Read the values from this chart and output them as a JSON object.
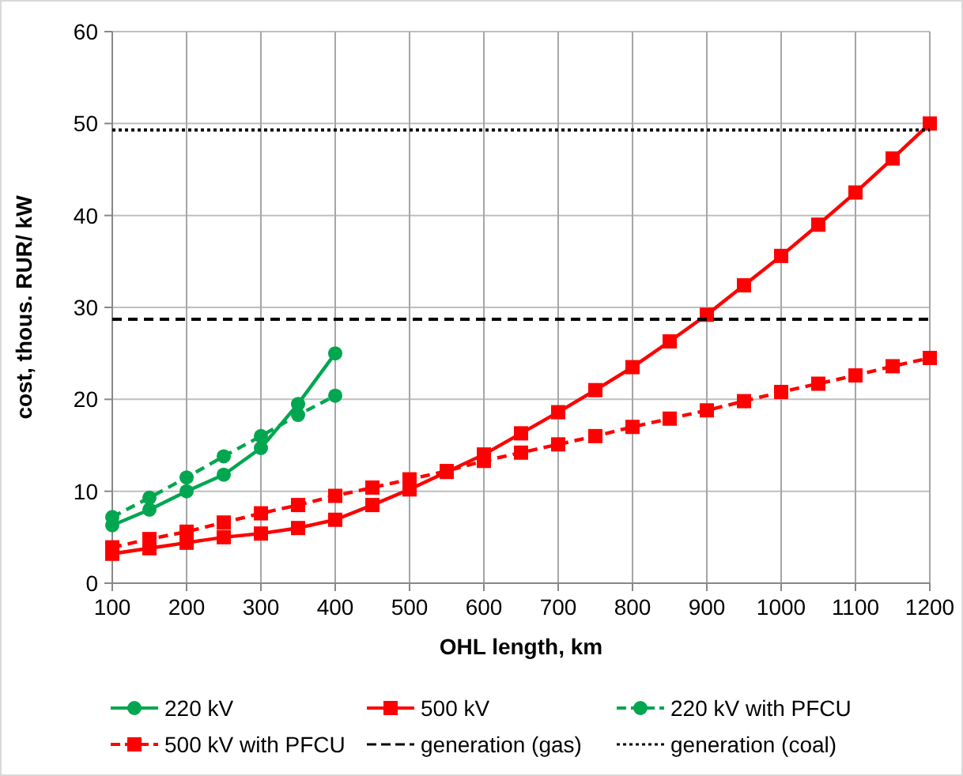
{
  "chart_data": {
    "type": "line",
    "xlabel": "OHL length, km",
    "ylabel": "cost, thous. RUR/ kW",
    "xlim": [
      100,
      1200
    ],
    "xticks": [
      100,
      200,
      300,
      400,
      500,
      600,
      700,
      800,
      900,
      1000,
      1100,
      1200
    ],
    "ylim": [
      0,
      60
    ],
    "yticks": [
      0,
      10,
      20,
      30,
      40,
      50,
      60
    ],
    "grid": true,
    "legend": "bottom",
    "series": [
      {
        "name": "220 kV",
        "color": "#00a650",
        "marker": "circle",
        "line_style": "solid",
        "x": [
          100,
          150,
          200,
          250,
          300,
          350,
          400
        ],
        "values": [
          6.3,
          8,
          10,
          11.8,
          14.7,
          19.5,
          25
        ]
      },
      {
        "name": "500 kV",
        "color": "#ff0000",
        "marker": "square",
        "line_style": "solid",
        "x": [
          100,
          150,
          200,
          250,
          300,
          350,
          400,
          450,
          500,
          550,
          600,
          650,
          700,
          750,
          800,
          850,
          900,
          950,
          1000,
          1050,
          1100,
          1150,
          1200
        ],
        "values": [
          3.2,
          3.8,
          4.4,
          5,
          5.4,
          6,
          6.9,
          8.5,
          10.2,
          12.1,
          14,
          16.3,
          18.6,
          21,
          23.5,
          26.3,
          29.2,
          32.4,
          35.6,
          39,
          42.5,
          46.2,
          50
        ]
      },
      {
        "name": "220 kV with PFCU",
        "color": "#00a650",
        "marker": "circle",
        "line_style": "dashed",
        "x": [
          100,
          150,
          200,
          250,
          300,
          350,
          400
        ],
        "values": [
          7.2,
          9.3,
          11.5,
          13.8,
          16,
          18.3,
          20.4
        ]
      },
      {
        "name": "500 kV with PFCU",
        "color": "#ff0000",
        "marker": "square",
        "line_style": "dashed",
        "x": [
          100,
          150,
          200,
          250,
          300,
          350,
          400,
          450,
          500,
          550,
          600,
          650,
          700,
          750,
          800,
          850,
          900,
          950,
          1000,
          1050,
          1100,
          1150,
          1200
        ],
        "values": [
          3.9,
          4.8,
          5.6,
          6.6,
          7.6,
          8.5,
          9.5,
          10.4,
          11.3,
          12.2,
          13.3,
          14.2,
          15.1,
          16,
          17,
          17.9,
          18.8,
          19.8,
          20.8,
          21.7,
          22.6,
          23.6,
          24.5
        ]
      },
      {
        "name": "generation (gas)",
        "color": "#000000",
        "marker": "none",
        "line_style": "dashed",
        "x": [
          100,
          1200
        ],
        "values": [
          28.7,
          28.7
        ]
      },
      {
        "name": "generation (coal)",
        "color": "#000000",
        "marker": "none",
        "line_style": "dotted",
        "x": [
          100,
          1200
        ],
        "values": [
          49.3,
          49.3
        ]
      }
    ]
  }
}
